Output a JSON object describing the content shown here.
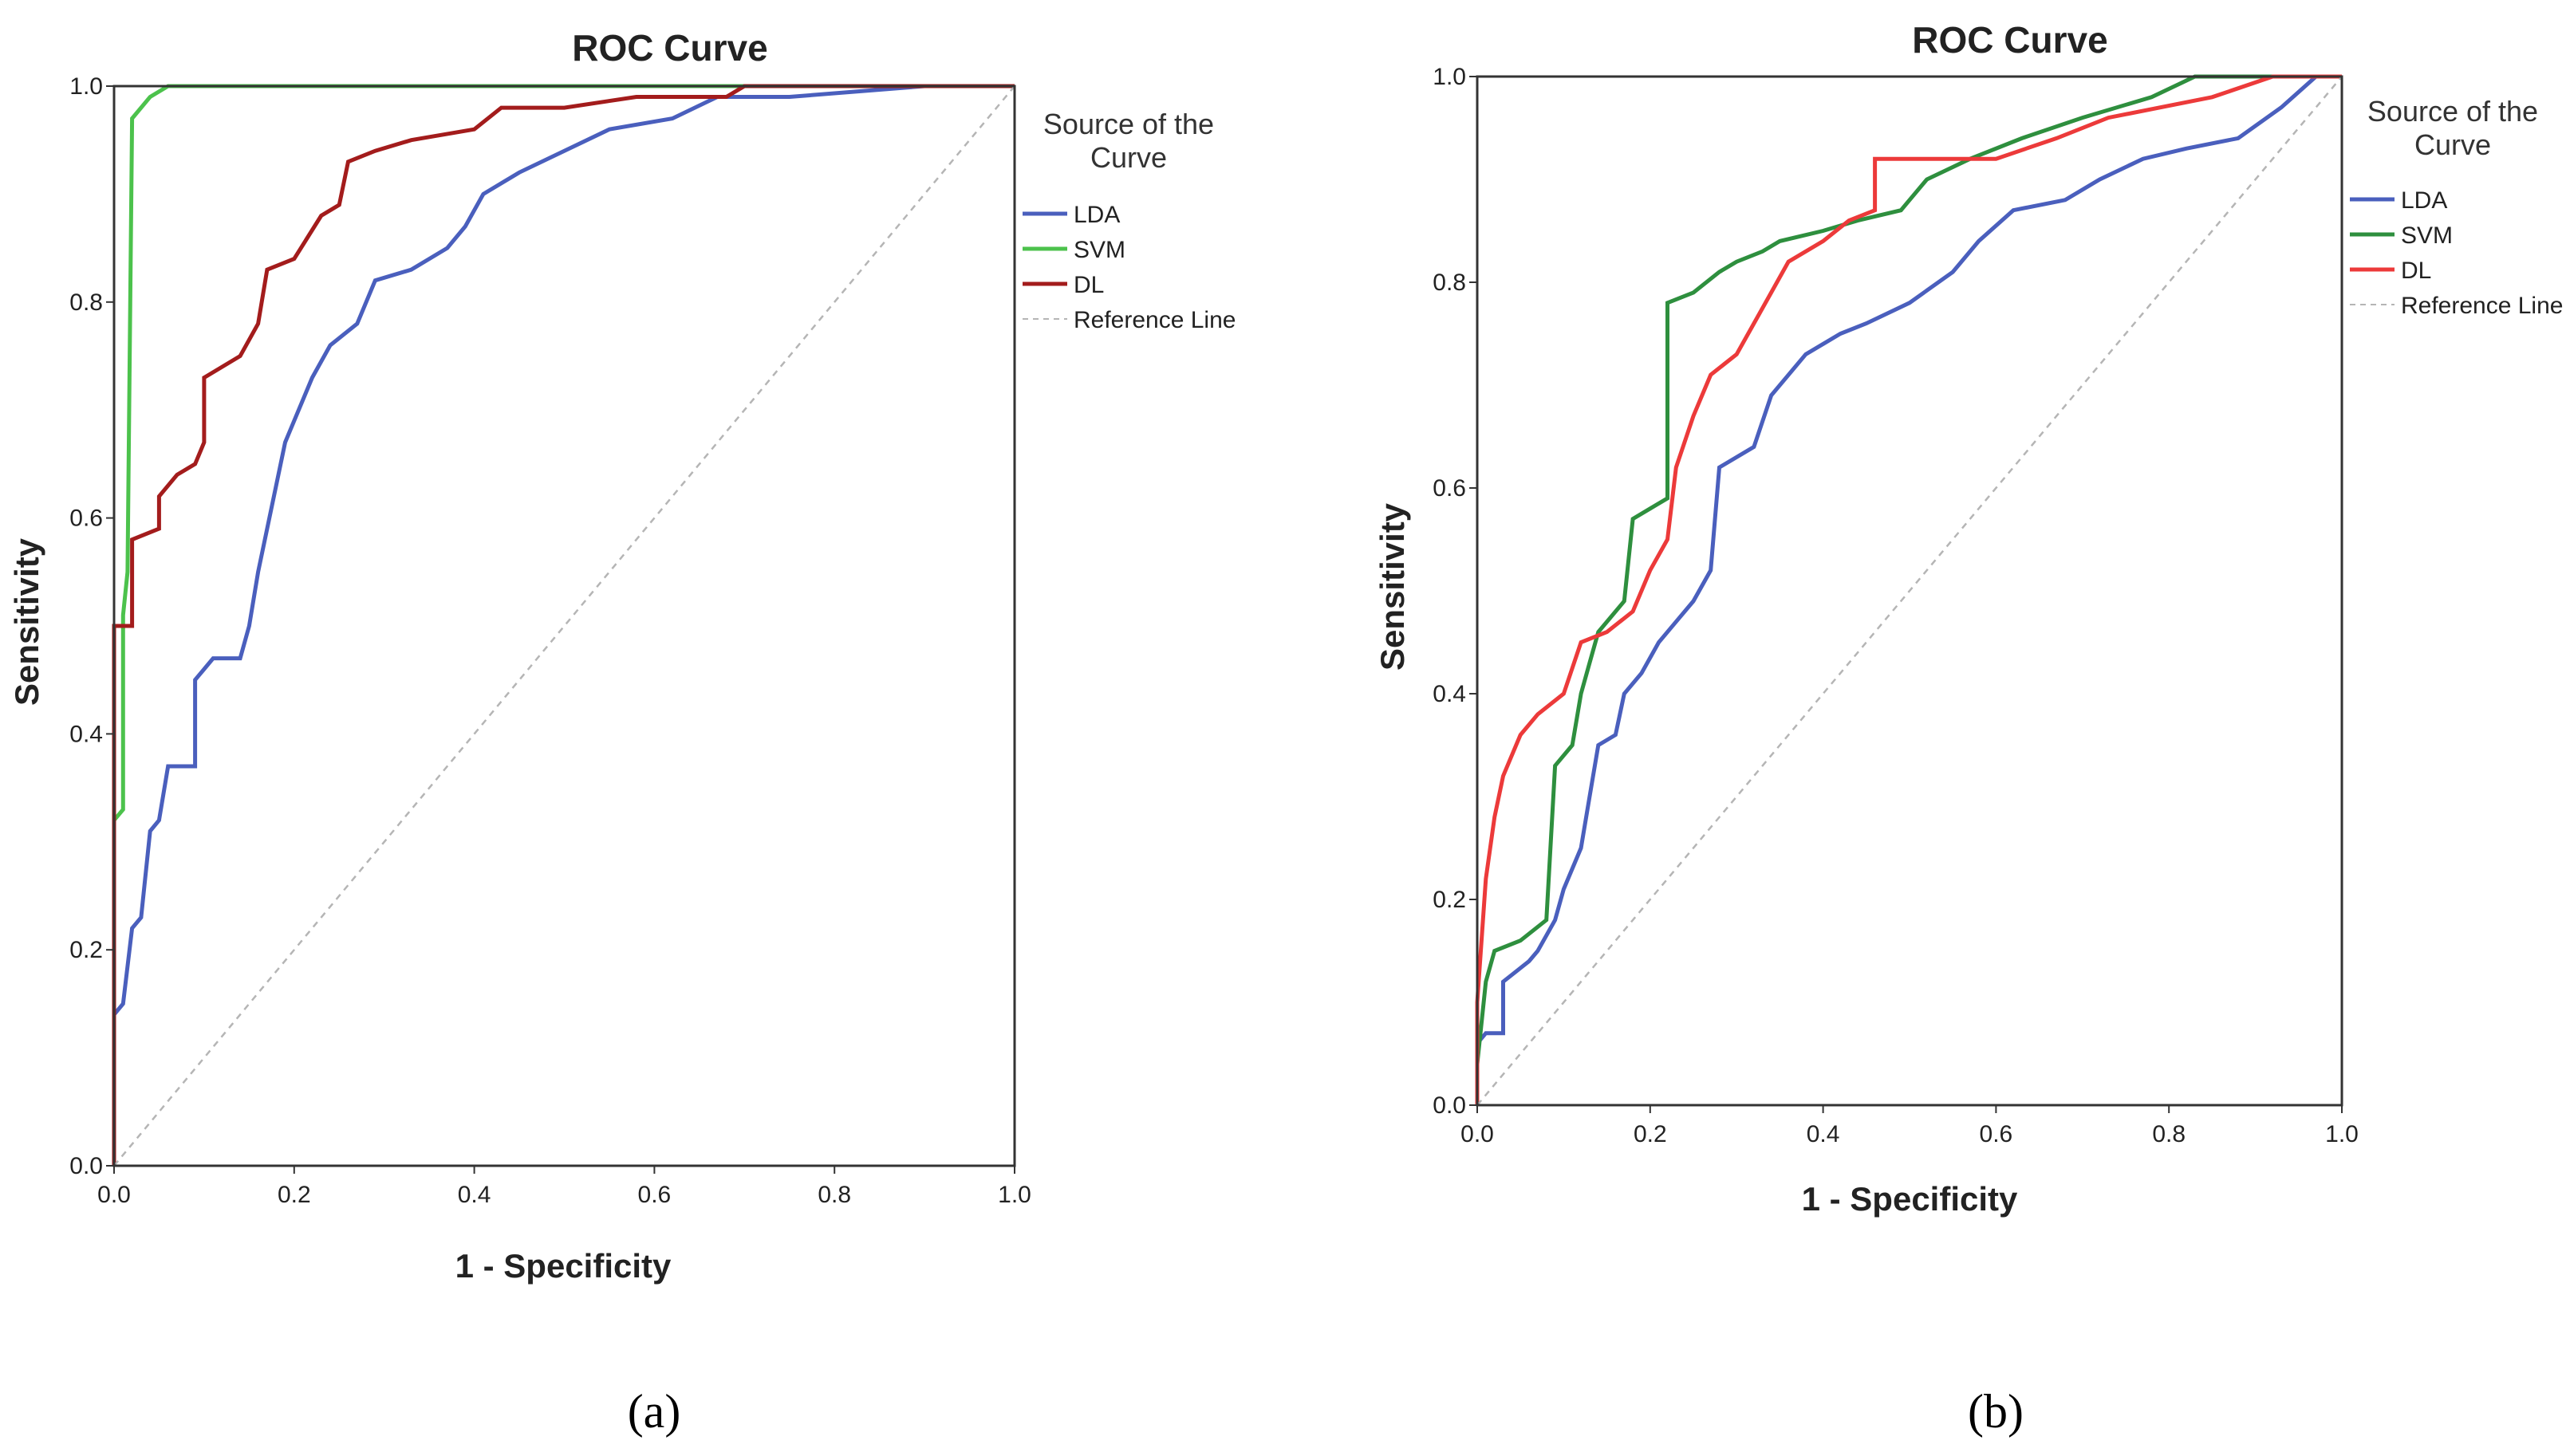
{
  "chart_data": [
    {
      "panel": "(a)",
      "type": "line",
      "title": "ROC Curve",
      "xlabel": "1 - Specificity",
      "ylabel": "Sensitivity",
      "xlim": [
        0,
        1
      ],
      "ylim": [
        0,
        1
      ],
      "xticks": [
        "0.0",
        "0.2",
        "0.4",
        "0.6",
        "0.8",
        "1.0"
      ],
      "yticks": [
        "0.0",
        "0.2",
        "0.4",
        "0.6",
        "0.8",
        "1.0"
      ],
      "legend": {
        "title": "Source of the Curve",
        "position": "right"
      },
      "series": [
        {
          "name": "LDA",
          "color": "#4a5fbd",
          "style": "solid",
          "points": [
            [
              0,
              0
            ],
            [
              0,
              0.14
            ],
            [
              0.01,
              0.15
            ],
            [
              0.02,
              0.22
            ],
            [
              0.03,
              0.23
            ],
            [
              0.04,
              0.31
            ],
            [
              0.05,
              0.32
            ],
            [
              0.06,
              0.37
            ],
            [
              0.09,
              0.37
            ],
            [
              0.09,
              0.45
            ],
            [
              0.11,
              0.47
            ],
            [
              0.14,
              0.47
            ],
            [
              0.15,
              0.5
            ],
            [
              0.16,
              0.55
            ],
            [
              0.17,
              0.59
            ],
            [
              0.18,
              0.63
            ],
            [
              0.19,
              0.67
            ],
            [
              0.2,
              0.69
            ],
            [
              0.22,
              0.73
            ],
            [
              0.24,
              0.76
            ],
            [
              0.27,
              0.78
            ],
            [
              0.29,
              0.82
            ],
            [
              0.33,
              0.83
            ],
            [
              0.37,
              0.85
            ],
            [
              0.39,
              0.87
            ],
            [
              0.41,
              0.9
            ],
            [
              0.45,
              0.92
            ],
            [
              0.5,
              0.94
            ],
            [
              0.55,
              0.96
            ],
            [
              0.62,
              0.97
            ],
            [
              0.67,
              0.99
            ],
            [
              0.75,
              0.99
            ],
            [
              0.9,
              1.0
            ],
            [
              1,
              1
            ]
          ]
        },
        {
          "name": "SVM",
          "color": "#4cc24c",
          "style": "solid",
          "points": [
            [
              0,
              0
            ],
            [
              0,
              0.32
            ],
            [
              0.01,
              0.33
            ],
            [
              0.01,
              0.51
            ],
            [
              0.015,
              0.55
            ],
            [
              0.02,
              0.97
            ],
            [
              0.04,
              0.99
            ],
            [
              0.06,
              1.0
            ],
            [
              1,
              1
            ]
          ]
        },
        {
          "name": "DL",
          "color": "#a31c1c",
          "style": "solid",
          "points": [
            [
              0,
              0
            ],
            [
              0,
              0.5
            ],
            [
              0.02,
              0.5
            ],
            [
              0.02,
              0.58
            ],
            [
              0.05,
              0.59
            ],
            [
              0.05,
              0.62
            ],
            [
              0.07,
              0.64
            ],
            [
              0.09,
              0.65
            ],
            [
              0.1,
              0.67
            ],
            [
              0.1,
              0.73
            ],
            [
              0.14,
              0.75
            ],
            [
              0.16,
              0.78
            ],
            [
              0.17,
              0.83
            ],
            [
              0.2,
              0.84
            ],
            [
              0.23,
              0.88
            ],
            [
              0.25,
              0.89
            ],
            [
              0.26,
              0.93
            ],
            [
              0.29,
              0.94
            ],
            [
              0.33,
              0.95
            ],
            [
              0.4,
              0.96
            ],
            [
              0.43,
              0.98
            ],
            [
              0.5,
              0.98
            ],
            [
              0.58,
              0.99
            ],
            [
              0.68,
              0.99
            ],
            [
              0.7,
              1.0
            ],
            [
              1,
              1
            ]
          ]
        },
        {
          "name": "Reference Line",
          "color": "#b5b5b5",
          "style": "dashed",
          "points": [
            [
              0,
              0
            ],
            [
              1,
              1
            ]
          ]
        }
      ]
    },
    {
      "panel": "(b)",
      "type": "line",
      "title": "ROC Curve",
      "xlabel": "1 - Specificity",
      "ylabel": "Sensitivity",
      "xlim": [
        0,
        1
      ],
      "ylim": [
        0,
        1
      ],
      "xticks": [
        "0.0",
        "0.2",
        "0.4",
        "0.6",
        "0.8",
        "1.0"
      ],
      "yticks": [
        "0.0",
        "0.2",
        "0.4",
        "0.6",
        "0.8",
        "1.0"
      ],
      "legend": {
        "title": "Source of the Curve",
        "position": "right"
      },
      "series": [
        {
          "name": "LDA",
          "color": "#4a5fbd",
          "style": "solid",
          "points": [
            [
              0,
              0
            ],
            [
              0,
              0.06
            ],
            [
              0.01,
              0.07
            ],
            [
              0.03,
              0.07
            ],
            [
              0.03,
              0.12
            ],
            [
              0.06,
              0.14
            ],
            [
              0.07,
              0.15
            ],
            [
              0.09,
              0.18
            ],
            [
              0.1,
              0.21
            ],
            [
              0.12,
              0.25
            ],
            [
              0.13,
              0.3
            ],
            [
              0.14,
              0.35
            ],
            [
              0.16,
              0.36
            ],
            [
              0.17,
              0.4
            ],
            [
              0.19,
              0.42
            ],
            [
              0.21,
              0.45
            ],
            [
              0.23,
              0.47
            ],
            [
              0.25,
              0.49
            ],
            [
              0.27,
              0.52
            ],
            [
              0.28,
              0.62
            ],
            [
              0.32,
              0.64
            ],
            [
              0.34,
              0.69
            ],
            [
              0.38,
              0.73
            ],
            [
              0.42,
              0.75
            ],
            [
              0.45,
              0.76
            ],
            [
              0.5,
              0.78
            ],
            [
              0.55,
              0.81
            ],
            [
              0.58,
              0.84
            ],
            [
              0.62,
              0.87
            ],
            [
              0.68,
              0.88
            ],
            [
              0.72,
              0.9
            ],
            [
              0.77,
              0.92
            ],
            [
              0.82,
              0.93
            ],
            [
              0.88,
              0.94
            ],
            [
              0.93,
              0.97
            ],
            [
              0.97,
              1.0
            ],
            [
              1,
              1
            ]
          ]
        },
        {
          "name": "SVM",
          "color": "#2e8f3e",
          "style": "solid",
          "points": [
            [
              0,
              0
            ],
            [
              0,
              0.04
            ],
            [
              0.01,
              0.12
            ],
            [
              0.02,
              0.15
            ],
            [
              0.05,
              0.16
            ],
            [
              0.08,
              0.18
            ],
            [
              0.09,
              0.33
            ],
            [
              0.11,
              0.35
            ],
            [
              0.12,
              0.4
            ],
            [
              0.13,
              0.43
            ],
            [
              0.14,
              0.46
            ],
            [
              0.17,
              0.49
            ],
            [
              0.18,
              0.57
            ],
            [
              0.2,
              0.58
            ],
            [
              0.22,
              0.59
            ],
            [
              0.22,
              0.78
            ],
            [
              0.25,
              0.79
            ],
            [
              0.28,
              0.81
            ],
            [
              0.3,
              0.82
            ],
            [
              0.33,
              0.83
            ],
            [
              0.35,
              0.84
            ],
            [
              0.4,
              0.85
            ],
            [
              0.44,
              0.86
            ],
            [
              0.49,
              0.87
            ],
            [
              0.52,
              0.9
            ],
            [
              0.57,
              0.92
            ],
            [
              0.63,
              0.94
            ],
            [
              0.7,
              0.96
            ],
            [
              0.78,
              0.98
            ],
            [
              0.83,
              1.0
            ],
            [
              1,
              1
            ]
          ]
        },
        {
          "name": "DL",
          "color": "#ec3a3a",
          "style": "solid",
          "points": [
            [
              0,
              0
            ],
            [
              0,
              0.1
            ],
            [
              0.01,
              0.22
            ],
            [
              0.02,
              0.28
            ],
            [
              0.03,
              0.32
            ],
            [
              0.05,
              0.36
            ],
            [
              0.07,
              0.38
            ],
            [
              0.1,
              0.4
            ],
            [
              0.12,
              0.45
            ],
            [
              0.15,
              0.46
            ],
            [
              0.18,
              0.48
            ],
            [
              0.2,
              0.52
            ],
            [
              0.22,
              0.55
            ],
            [
              0.23,
              0.62
            ],
            [
              0.25,
              0.67
            ],
            [
              0.27,
              0.71
            ],
            [
              0.3,
              0.73
            ],
            [
              0.32,
              0.76
            ],
            [
              0.34,
              0.79
            ],
            [
              0.36,
              0.82
            ],
            [
              0.4,
              0.84
            ],
            [
              0.43,
              0.86
            ],
            [
              0.46,
              0.87
            ],
            [
              0.46,
              0.92
            ],
            [
              0.6,
              0.92
            ],
            [
              0.67,
              0.94
            ],
            [
              0.73,
              0.96
            ],
            [
              0.85,
              0.98
            ],
            [
              0.92,
              1.0
            ],
            [
              1,
              1
            ]
          ]
        },
        {
          "name": "Reference Line",
          "color": "#b5b5b5",
          "style": "dashed",
          "points": [
            [
              0,
              0
            ],
            [
              1,
              1
            ]
          ]
        }
      ]
    }
  ],
  "captions": [
    "(a)",
    "(b)"
  ]
}
